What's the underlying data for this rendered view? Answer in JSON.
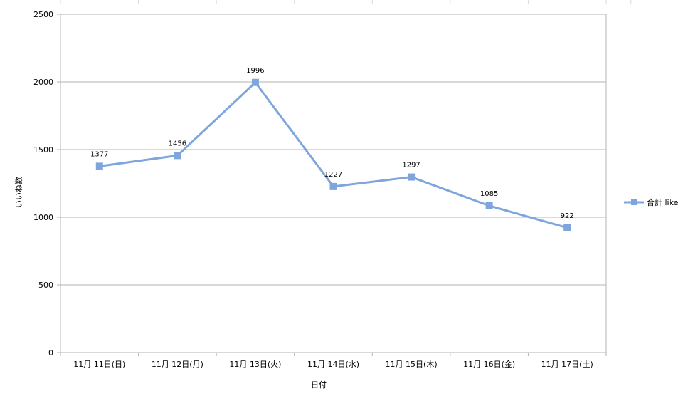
{
  "chart_data": {
    "type": "line",
    "categories": [
      "11月 11日(日)",
      "11月 12日(月)",
      "11月 13日(火)",
      "11月 14日(水)",
      "11月 15日(木)",
      "11月 16日(金)",
      "11月 17日(土)"
    ],
    "series": [
      {
        "name": "合計 like",
        "values": [
          1377,
          1456,
          1996,
          1227,
          1297,
          1085,
          922
        ],
        "color": "#7ea6dc"
      }
    ],
    "yticks": [
      0,
      500,
      1000,
      1500,
      2000,
      2500
    ],
    "ylim": [
      0,
      2500
    ],
    "xlabel": "日付",
    "ylabel": "いいね数",
    "grid": true,
    "legend": "right",
    "colors": {
      "line": "#7ea6dc",
      "grid": "#b3b3b3",
      "axis": "#b3b3b3"
    }
  }
}
